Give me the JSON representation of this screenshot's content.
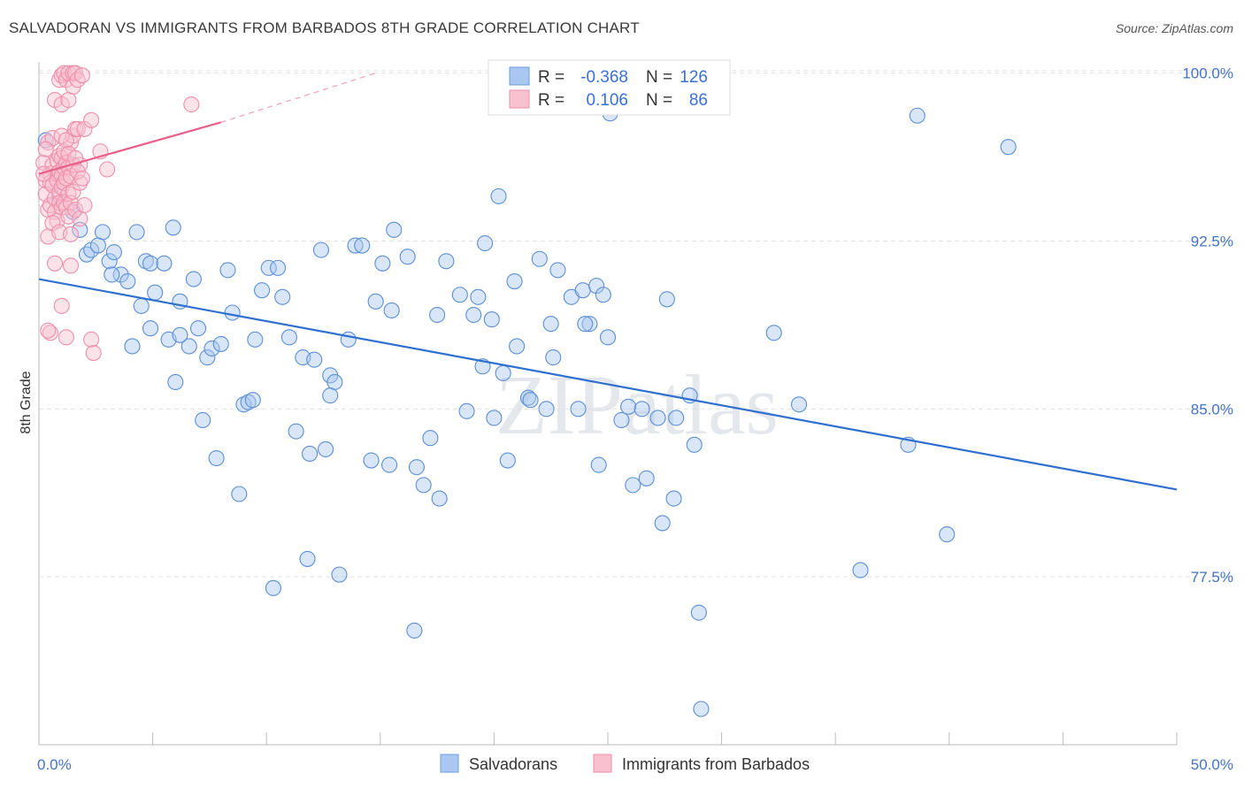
{
  "title": "SALVADORAN VS IMMIGRANTS FROM BARBADOS 8TH GRADE CORRELATION CHART",
  "source": "Source: ZipAtlas.com",
  "watermark": "ZIPatlas",
  "legend_stats": [
    {
      "r_label": "R =",
      "r_value": "-0.368",
      "n_label": "N =",
      "n_value": "126",
      "color": "#a9c7f0",
      "stroke": "#6a9de0"
    },
    {
      "r_label": "R =",
      "r_value": "0.106",
      "n_label": "N =",
      "n_value": "86",
      "color": "#f9c0d0",
      "stroke": "#ee8fab"
    }
  ],
  "chart_data": {
    "type": "scatter",
    "title": "SALVADORAN VS IMMIGRANTS FROM BARBADOS 8TH GRADE CORRELATION CHART",
    "xlabel": "",
    "ylabel": "8th Grade",
    "xlim": [
      0,
      50
    ],
    "ylim": [
      70.0,
      100.5
    ],
    "x_tick_labels": [
      "0.0%",
      "50.0%"
    ],
    "y_ticks": [
      100.0,
      92.5,
      85.0,
      77.5
    ],
    "y_tick_labels": [
      "100.0%",
      "92.5%",
      "85.0%",
      "77.5%"
    ],
    "grid": true,
    "legend_position": "bottom",
    "series": [
      {
        "name": "Salvadorans",
        "color": "#a9c7f0",
        "stroke": "#5b8fd6",
        "trend": {
          "x": [
            0,
            50
          ],
          "y": [
            90.8,
            81.4
          ],
          "color": "#2e6fd0"
        },
        "points": [
          [
            0.3,
            97.0
          ],
          [
            0.9,
            94.5
          ],
          [
            1.5,
            93.8
          ],
          [
            1.8,
            93.0
          ],
          [
            2.1,
            91.9
          ],
          [
            2.3,
            92.1
          ],
          [
            2.8,
            92.9
          ],
          [
            3.1,
            91.6
          ],
          [
            3.3,
            92.0
          ],
          [
            2.6,
            92.3
          ],
          [
            3.6,
            91.0
          ],
          [
            3.9,
            90.7
          ],
          [
            4.1,
            87.8
          ],
          [
            4.3,
            92.9
          ],
          [
            4.5,
            89.6
          ],
          [
            4.7,
            91.6
          ],
          [
            4.9,
            91.5
          ],
          [
            5.1,
            90.2
          ],
          [
            5.5,
            91.5
          ],
          [
            5.7,
            88.1
          ],
          [
            5.9,
            93.1
          ],
          [
            6.0,
            86.2
          ],
          [
            6.2,
            89.8
          ],
          [
            6.6,
            87.8
          ],
          [
            6.8,
            90.8
          ],
          [
            7.0,
            88.6
          ],
          [
            7.2,
            84.5
          ],
          [
            7.4,
            87.3
          ],
          [
            7.6,
            87.7
          ],
          [
            7.8,
            82.8
          ],
          [
            8.0,
            87.9
          ],
          [
            8.3,
            91.2
          ],
          [
            8.5,
            89.3
          ],
          [
            8.8,
            81.2
          ],
          [
            9.0,
            85.2
          ],
          [
            9.2,
            85.3
          ],
          [
            9.5,
            88.1
          ],
          [
            9.8,
            90.3
          ],
          [
            10.1,
            91.3
          ],
          [
            10.3,
            77.0
          ],
          [
            10.5,
            91.3
          ],
          [
            10.7,
            90.0
          ],
          [
            11.0,
            88.2
          ],
          [
            11.3,
            84.0
          ],
          [
            11.6,
            87.3
          ],
          [
            11.9,
            83.0
          ],
          [
            11.8,
            78.3
          ],
          [
            12.1,
            87.2
          ],
          [
            12.4,
            92.1
          ],
          [
            12.6,
            83.2
          ],
          [
            12.8,
            86.5
          ],
          [
            13.0,
            86.2
          ],
          [
            13.2,
            77.6
          ],
          [
            13.6,
            88.1
          ],
          [
            13.9,
            92.3
          ],
          [
            14.2,
            92.3
          ],
          [
            14.6,
            82.7
          ],
          [
            14.8,
            89.8
          ],
          [
            15.1,
            91.5
          ],
          [
            15.4,
            82.5
          ],
          [
            15.6,
            93.0
          ],
          [
            16.2,
            91.8
          ],
          [
            16.6,
            82.4
          ],
          [
            16.5,
            75.1
          ],
          [
            16.9,
            81.6
          ],
          [
            17.2,
            83.7
          ],
          [
            17.5,
            89.2
          ],
          [
            17.6,
            81.0
          ],
          [
            17.9,
            91.6
          ],
          [
            18.5,
            90.1
          ],
          [
            18.8,
            84.9
          ],
          [
            19.1,
            89.2
          ],
          [
            19.3,
            90.0
          ],
          [
            19.6,
            92.4
          ],
          [
            19.9,
            89.0
          ],
          [
            20.0,
            84.6
          ],
          [
            20.2,
            94.5
          ],
          [
            20.4,
            86.6
          ],
          [
            20.9,
            90.7
          ],
          [
            20.6,
            82.7
          ],
          [
            21.0,
            87.8
          ],
          [
            21.5,
            85.5
          ],
          [
            21.6,
            85.4
          ],
          [
            22.0,
            91.7
          ],
          [
            22.3,
            85.0
          ],
          [
            22.5,
            88.8
          ],
          [
            22.6,
            87.3
          ],
          [
            22.8,
            91.2
          ],
          [
            23.4,
            90.0
          ],
          [
            23.9,
            90.3
          ],
          [
            24.2,
            88.8
          ],
          [
            24.5,
            90.5
          ],
          [
            24.6,
            82.5
          ],
          [
            24.8,
            90.1
          ],
          [
            25.0,
            88.2
          ],
          [
            25.6,
            84.5
          ],
          [
            25.9,
            85.1
          ],
          [
            26.1,
            81.6
          ],
          [
            26.5,
            85.0
          ],
          [
            26.7,
            81.9
          ],
          [
            27.2,
            84.6
          ],
          [
            27.4,
            79.9
          ],
          [
            27.6,
            89.9
          ],
          [
            27.9,
            81.0
          ],
          [
            28.0,
            84.6
          ],
          [
            29.0,
            75.9
          ],
          [
            29.1,
            71.6
          ],
          [
            28.8,
            83.4
          ],
          [
            28.6,
            85.6
          ],
          [
            32.3,
            88.4
          ],
          [
            33.4,
            85.2
          ],
          [
            36.1,
            77.8
          ],
          [
            38.2,
            83.4
          ],
          [
            38.6,
            98.1
          ],
          [
            39.9,
            79.4
          ],
          [
            42.6,
            96.7
          ],
          [
            25.1,
            98.2
          ],
          [
            15.5,
            89.4
          ],
          [
            12.8,
            85.6
          ],
          [
            23.7,
            85.0
          ],
          [
            24.0,
            88.8
          ],
          [
            19.5,
            86.9
          ],
          [
            9.4,
            85.4
          ],
          [
            6.2,
            88.3
          ],
          [
            4.9,
            88.6
          ],
          [
            3.2,
            91.0
          ]
        ]
      },
      {
        "name": "Immigrants from Barbados",
        "color": "#f9c0d0",
        "stroke": "#ee8fab",
        "trend": {
          "x": [
            0,
            8
          ],
          "y": [
            95.5,
            97.8
          ],
          "dash_to": [
            14.8,
            100.0
          ],
          "color": "#e8608a"
        },
        "points": [
          [
            0.2,
            96.0
          ],
          [
            0.3,
            95.2
          ],
          [
            0.3,
            94.6
          ],
          [
            0.4,
            93.9
          ],
          [
            0.4,
            96.9
          ],
          [
            0.4,
            92.7
          ],
          [
            0.5,
            95.5
          ],
          [
            0.5,
            95.1
          ],
          [
            0.5,
            94.1
          ],
          [
            0.6,
            97.1
          ],
          [
            0.6,
            95.9
          ],
          [
            0.6,
            95.0
          ],
          [
            0.7,
            94.4
          ],
          [
            0.7,
            93.8
          ],
          [
            0.7,
            98.8
          ],
          [
            0.8,
            96.1
          ],
          [
            0.8,
            95.5
          ],
          [
            0.8,
            95.2
          ],
          [
            0.8,
            93.4
          ],
          [
            0.9,
            99.7
          ],
          [
            0.9,
            96.3
          ],
          [
            0.9,
            95.6
          ],
          [
            0.9,
            94.7
          ],
          [
            0.9,
            94.2
          ],
          [
            1.0,
            99.9
          ],
          [
            1.0,
            98.6
          ],
          [
            1.0,
            96.2
          ],
          [
            1.0,
            95.4
          ],
          [
            1.0,
            94.9
          ],
          [
            1.0,
            94.0
          ],
          [
            1.1,
            100.0
          ],
          [
            1.1,
            96.5
          ],
          [
            1.1,
            95.8
          ],
          [
            1.1,
            95.1
          ],
          [
            1.1,
            94.2
          ],
          [
            1.2,
            99.7
          ],
          [
            1.2,
            96.0
          ],
          [
            1.2,
            95.3
          ],
          [
            1.2,
            94.0
          ],
          [
            1.3,
            100.0
          ],
          [
            1.3,
            98.8
          ],
          [
            1.3,
            95.8
          ],
          [
            1.3,
            94.6
          ],
          [
            1.3,
            93.6
          ],
          [
            1.4,
            96.9
          ],
          [
            1.4,
            95.4
          ],
          [
            1.4,
            94.2
          ],
          [
            1.5,
            100.0
          ],
          [
            1.5,
            99.4
          ],
          [
            1.5,
            97.2
          ],
          [
            1.5,
            95.9
          ],
          [
            1.5,
            94.7
          ],
          [
            1.6,
            100.0
          ],
          [
            1.6,
            97.5
          ],
          [
            1.6,
            93.9
          ],
          [
            1.7,
            99.7
          ],
          [
            1.7,
            97.5
          ],
          [
            1.8,
            95.9
          ],
          [
            1.8,
            95.1
          ],
          [
            1.9,
            99.9
          ],
          [
            2.0,
            97.5
          ],
          [
            2.3,
            97.9
          ],
          [
            2.7,
            96.5
          ],
          [
            3.0,
            95.7
          ],
          [
            1.0,
            89.6
          ],
          [
            0.5,
            88.4
          ],
          [
            0.4,
            88.5
          ],
          [
            2.3,
            88.1
          ],
          [
            2.4,
            87.5
          ],
          [
            6.7,
            98.6
          ],
          [
            1.2,
            88.2
          ],
          [
            1.4,
            91.4
          ],
          [
            0.6,
            93.3
          ],
          [
            0.7,
            91.5
          ],
          [
            0.9,
            92.9
          ],
          [
            1.0,
            97.2
          ],
          [
            1.2,
            97.0
          ],
          [
            1.3,
            96.4
          ],
          [
            1.4,
            92.8
          ],
          [
            1.6,
            96.2
          ],
          [
            1.7,
            95.6
          ],
          [
            1.8,
            93.5
          ],
          [
            1.9,
            95.3
          ],
          [
            2.0,
            94.1
          ],
          [
            0.2,
            95.5
          ],
          [
            0.3,
            96.6
          ]
        ]
      }
    ]
  }
}
